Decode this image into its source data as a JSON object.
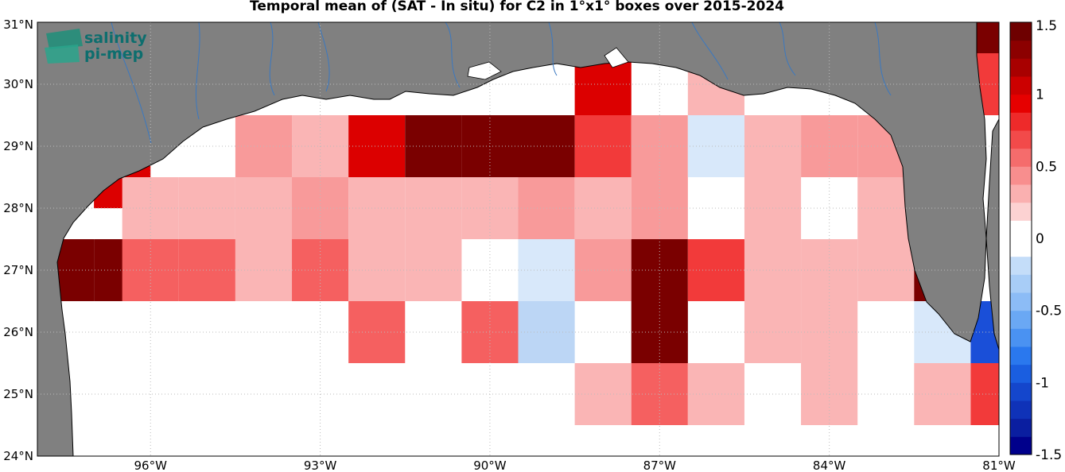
{
  "title": "Temporal mean of (SAT - In situ) for C2 in 1°x1° boxes over 2015-2024",
  "logo": {
    "line1": "salinity",
    "line2": "pi-mep"
  },
  "map": {
    "lon_range": [
      -98,
      -81
    ],
    "lat_range": [
      24,
      31
    ],
    "x_ticks": [
      "96°W",
      "93°W",
      "90°W",
      "87°W",
      "84°W",
      "81°W"
    ],
    "x_tick_values": [
      -96,
      -93,
      -90,
      -87,
      -84,
      -81
    ],
    "y_ticks": [
      "24°N",
      "25°N",
      "26°N",
      "27°N",
      "28°N",
      "29°N",
      "30°N",
      "31°N"
    ],
    "y_tick_values": [
      24,
      25,
      26,
      27,
      28,
      29,
      30,
      31
    ],
    "land_color": "#808080",
    "grid": true
  },
  "colorbar": {
    "range": [
      -1.5,
      1.5
    ],
    "tick_labels": [
      "1.5",
      "1",
      "0.5",
      "0",
      "-0.5",
      "-1",
      "-1.5"
    ],
    "tick_values": [
      1.5,
      1,
      0.5,
      0,
      -0.5,
      -1,
      -1.5
    ],
    "levels": 24
  },
  "chart_data": {
    "type": "heatmap",
    "title": "Temporal mean of (SAT - In situ) for C2 in 1°x1° boxes over 2015-2024",
    "cell_size_deg": 1,
    "note_units": "cells keyed by lower-left lon/lat, value = mean difference",
    "cells": [
      {
        "lon": -97,
        "lat": 28,
        "v": 1.1
      },
      {
        "lon": -98,
        "lat": 26.5,
        "v": 1.5
      },
      {
        "lon": -97,
        "lat": 26.5,
        "v": 1.5
      },
      {
        "lon": -96.5,
        "lat": 26.5,
        "v": 0.75
      },
      {
        "lon": -95.5,
        "lat": 26.5,
        "v": 0.75
      },
      {
        "lon": -96.5,
        "lat": 27.5,
        "v": 0.2
      },
      {
        "lon": -95.5,
        "lat": 27.5,
        "v": 0.3
      },
      {
        "lon": -94.5,
        "lat": 27.5,
        "v": 0.3
      },
      {
        "lon": -94.5,
        "lat": 28.5,
        "v": 0.45
      },
      {
        "lon": -93.5,
        "lat": 28.5,
        "v": 0.2
      },
      {
        "lon": -93.5,
        "lat": 27.5,
        "v": 0.55
      },
      {
        "lon": -94.5,
        "lat": 26.5,
        "v": 0.3
      },
      {
        "lon": -93.5,
        "lat": 26.5,
        "v": 0.75
      },
      {
        "lon": -92.5,
        "lat": 27.5,
        "v": 0.3
      },
      {
        "lon": -92.5,
        "lat": 26.5,
        "v": 0.3
      },
      {
        "lon": -92.5,
        "lat": 25.5,
        "v": 0.75
      },
      {
        "lon": -91.5,
        "lat": 27.5,
        "v": 0.2
      },
      {
        "lon": -90.5,
        "lat": 27.5,
        "v": 0.2
      },
      {
        "lon": -91.5,
        "lat": 26.5,
        "v": 0.2
      },
      {
        "lon": -90.5,
        "lat": 25.5,
        "v": 0.75
      },
      {
        "lon": -89.5,
        "lat": 27.5,
        "v": 0.55
      },
      {
        "lon": -89.5,
        "lat": 26.5,
        "v": -0.2
      },
      {
        "lon": -89.5,
        "lat": 25.5,
        "v": -0.35
      },
      {
        "lon": -92.5,
        "lat": 28.5,
        "v": 1.1
      },
      {
        "lon": -91.5,
        "lat": 28.5,
        "v": 1.5
      },
      {
        "lon": -90.5,
        "lat": 28.5,
        "v": 1.5
      },
      {
        "lon": -89.5,
        "lat": 28.5,
        "v": 1.5
      },
      {
        "lon": -88.5,
        "lat": 29.5,
        "v": 1.1
      },
      {
        "lon": -88.5,
        "lat": 28.5,
        "v": 0.85
      },
      {
        "lon": -88.5,
        "lat": 27.5,
        "v": 0.3
      },
      {
        "lon": -88.5,
        "lat": 26.5,
        "v": 0.55
      },
      {
        "lon": -88.5,
        "lat": 24.5,
        "v": 0.2
      },
      {
        "lon": -87.5,
        "lat": 28.5,
        "v": 0.45
      },
      {
        "lon": -87.5,
        "lat": 27.5,
        "v": 0.45
      },
      {
        "lon": -87.5,
        "lat": 26.5,
        "v": 1.5
      },
      {
        "lon": -87.5,
        "lat": 25.5,
        "v": 1.5
      },
      {
        "lon": -87.5,
        "lat": 24.5,
        "v": 0.75
      },
      {
        "lon": -86.5,
        "lat": 29.5,
        "v": 0.2
      },
      {
        "lon": -86.5,
        "lat": 28.5,
        "v": -0.2
      },
      {
        "lon": -86.5,
        "lat": 26.5,
        "v": 0.85
      },
      {
        "lon": -86.5,
        "lat": 24.5,
        "v": 0.3
      },
      {
        "lon": -85.5,
        "lat": 28.5,
        "v": 0.2
      },
      {
        "lon": -85.5,
        "lat": 27.5,
        "v": 0.2
      },
      {
        "lon": -85.5,
        "lat": 26.5,
        "v": 0.2
      },
      {
        "lon": -85.5,
        "lat": 25.5,
        "v": 0.3
      },
      {
        "lon": -84.5,
        "lat": 28.5,
        "v": 0.55
      },
      {
        "lon": -84.5,
        "lat": 26.5,
        "v": 0.2
      },
      {
        "lon": -84.5,
        "lat": 25.5,
        "v": 0.3
      },
      {
        "lon": -84.5,
        "lat": 24.5,
        "v": 0.3
      },
      {
        "lon": -83.5,
        "lat": 28.5,
        "v": 0.45
      },
      {
        "lon": -83.5,
        "lat": 27.5,
        "v": 0.3
      },
      {
        "lon": -83.5,
        "lat": 26.5,
        "v": 0.2
      },
      {
        "lon": -82.5,
        "lat": 26.5,
        "v": 1.5
      },
      {
        "lon": -82.5,
        "lat": 25.5,
        "v": -0.2
      },
      {
        "lon": -82.5,
        "lat": 24.5,
        "v": 0.2
      },
      {
        "lon": -81.5,
        "lat": 25.5,
        "v": -1.0
      },
      {
        "lon": -81.5,
        "lat": 24.5,
        "v": 0.9
      },
      {
        "lon": -81.5,
        "lat": 30.5,
        "v": 1.4
      },
      {
        "lon": -81.5,
        "lat": 29.5,
        "v": 1.0
      }
    ]
  }
}
